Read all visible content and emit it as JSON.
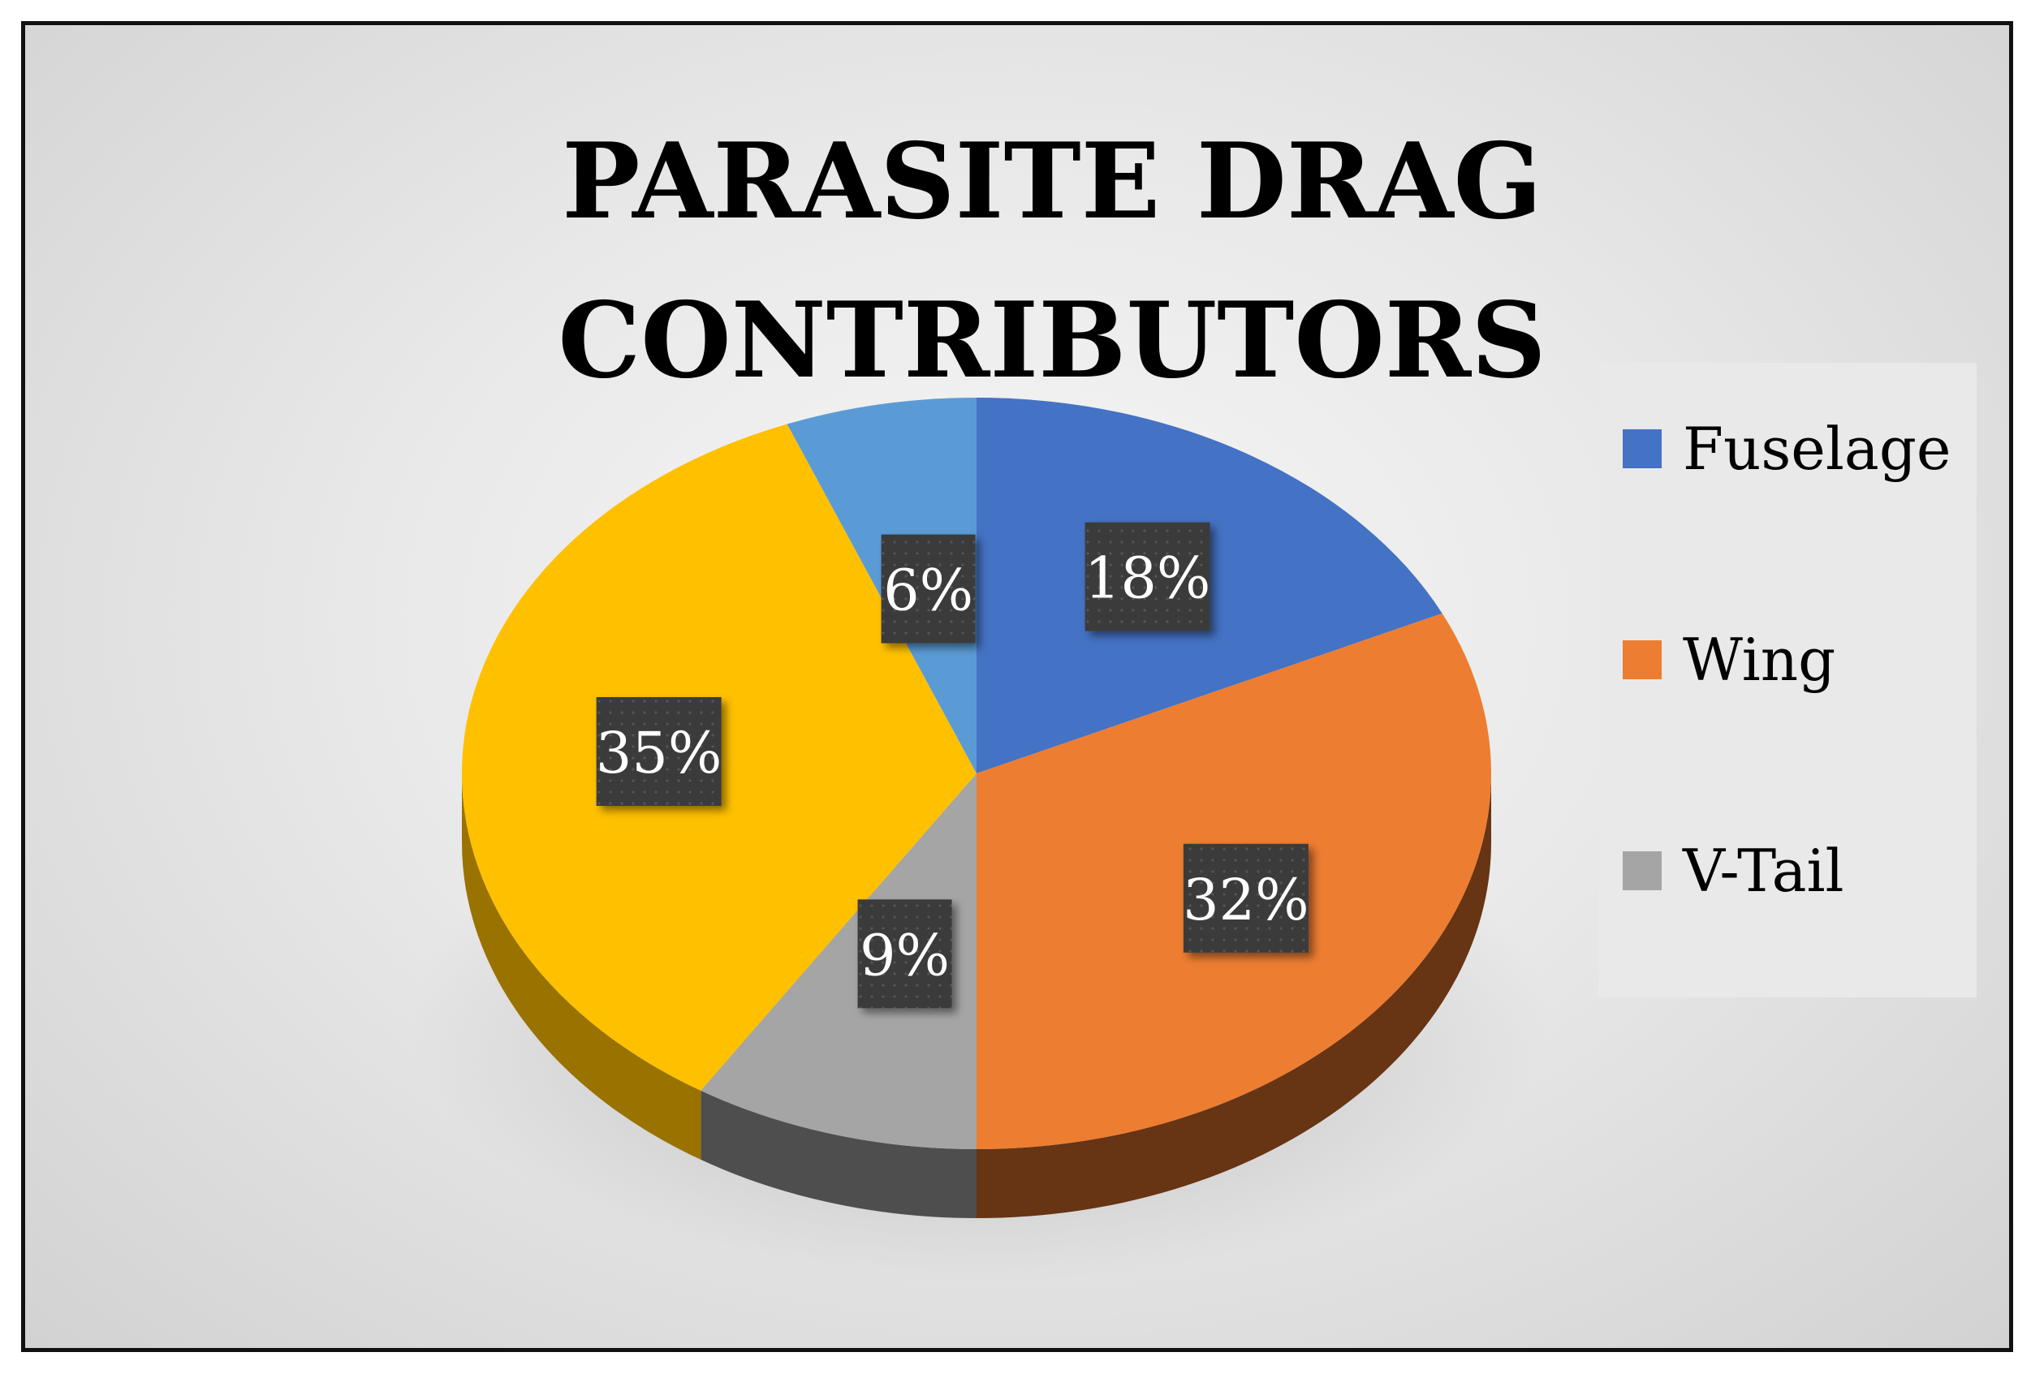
{
  "chart_data": {
    "type": "pie",
    "title": [
      "PARASITE DRAG",
      "CONTRIBUTORS"
    ],
    "slices": [
      {
        "name": "Fuselage",
        "value": 18,
        "label": "18%",
        "color": "#4472c4",
        "side_color": "#2b4a84"
      },
      {
        "name": "Wing",
        "value": 32,
        "label": "32%",
        "color": "#ed7d31",
        "side_color": "#673414"
      },
      {
        "name": "V-Tail",
        "value": 9,
        "label": "9%",
        "color": "#a5a5a5",
        "side_color": "#4e4e4e"
      },
      {
        "name": "",
        "value": 35,
        "label": "35%",
        "color": "#ffc000",
        "side_color": "#9a7200"
      },
      {
        "name": "",
        "value": 6,
        "label": "6%",
        "color": "#5b9bd5",
        "side_color": "#3a6a9a"
      }
    ],
    "legend": [
      "Fuselage",
      "Wing",
      "V-Tail"
    ],
    "legend_position": "right",
    "style": "3d-pie"
  }
}
